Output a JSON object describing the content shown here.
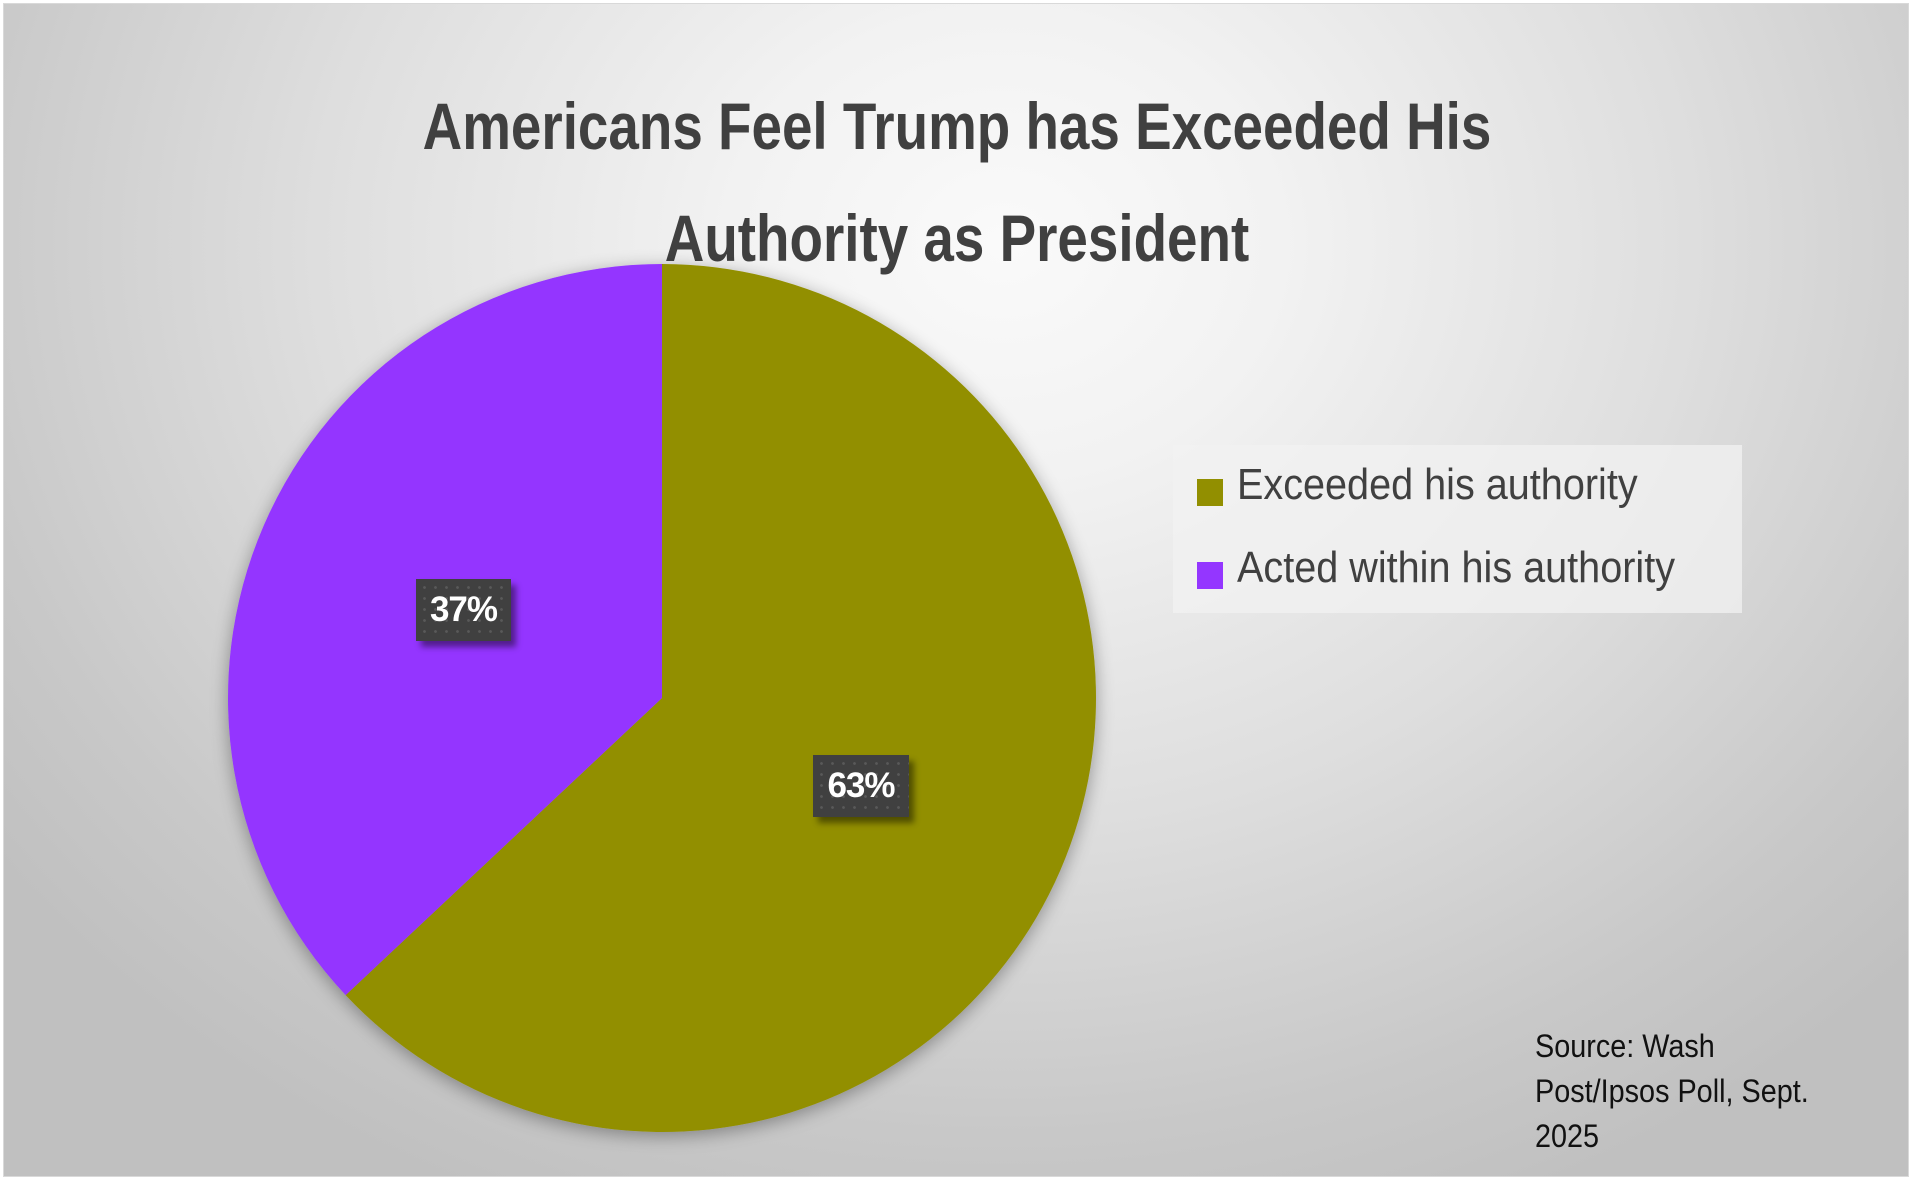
{
  "chart_data": {
    "type": "pie",
    "title": "Americans Feel Trump has Exceeded His Authority as President",
    "title_lines": [
      "Americans Feel Trump has Exceeded His",
      "Authority as President"
    ],
    "categories": [
      "Exceeded his authority",
      "Acted within his authority"
    ],
    "values": [
      63,
      37
    ],
    "data_labels": [
      "63%",
      "37%"
    ],
    "colors": [
      "#928F00",
      "#9436FF"
    ],
    "start_angle_deg": 0,
    "direction": "clockwise",
    "legend_position": "right",
    "annotation": "Source: Wash Post/Ipsos Poll, Sept. 2025",
    "annotation_lines": [
      "Source: Wash",
      "Post/Ipsos Poll, Sept.",
      "2025"
    ]
  }
}
